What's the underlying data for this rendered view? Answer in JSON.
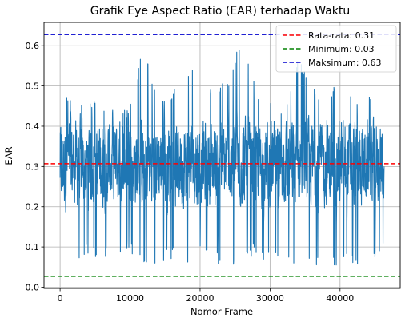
{
  "chart_data": {
    "type": "line",
    "title": "Grafik Eye Aspect Ratio (EAR) terhadap Waktu",
    "xlabel": "Nomor Frame",
    "ylabel": "EAR",
    "xlim": [
      -2300,
      48600
    ],
    "ylim": [
      -0.003,
      0.658
    ],
    "xticks": [
      0,
      10000,
      20000,
      30000,
      40000
    ],
    "xtick_labels": [
      "0",
      "10000",
      "20000",
      "30000",
      "40000"
    ],
    "yticks": [
      0.0,
      0.1,
      0.2,
      0.3,
      0.4,
      0.5,
      0.6
    ],
    "ytick_labels": [
      "0.0",
      "0.1",
      "0.2",
      "0.3",
      "0.4",
      "0.5",
      "0.6"
    ],
    "grid": true,
    "legend_position": "top-right",
    "series": [
      {
        "style": "solid",
        "color": "#1f77b4",
        "x_range": [
          0,
          46300
        ],
        "approx_envelope": {
          "x": [
            0,
            2000,
            4000,
            6000,
            8000,
            10000,
            12000,
            14000,
            16000,
            18000,
            20000,
            22000,
            24000,
            26000,
            28000,
            30000,
            32000,
            34000,
            36000,
            38000,
            40000,
            42000,
            44000,
            46000
          ],
          "low": [
            0.14,
            0.05,
            0.08,
            0.07,
            0.08,
            0.09,
            0.04,
            0.06,
            0.07,
            0.05,
            0.08,
            0.06,
            0.04,
            0.07,
            0.08,
            0.06,
            0.07,
            0.05,
            0.06,
            0.04,
            0.06,
            0.05,
            0.04,
            0.1
          ],
          "high": [
            0.51,
            0.46,
            0.48,
            0.45,
            0.44,
            0.45,
            0.61,
            0.47,
            0.49,
            0.53,
            0.55,
            0.49,
            0.52,
            0.63,
            0.49,
            0.48,
            0.45,
            0.58,
            0.5,
            0.46,
            0.56,
            0.47,
            0.49,
            0.38
          ]
        }
      }
    ],
    "reference_lines": [
      {
        "label": "Rata-rata: 0.31",
        "value": 0.307,
        "color": "#ff0000",
        "style": "dashed"
      },
      {
        "label": "Minimum: 0.03",
        "value": 0.027,
        "color": "#008000",
        "style": "dashed"
      },
      {
        "label": "Maksimum: 0.63",
        "value": 0.628,
        "color": "#0000cd",
        "style": "dashed"
      }
    ]
  }
}
